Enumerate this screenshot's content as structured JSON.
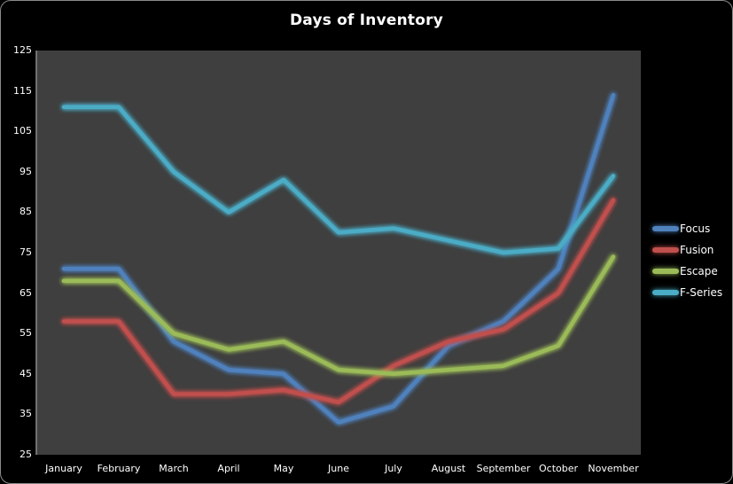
{
  "window": {
    "background": "#000000",
    "border_color": "#8a8a8a"
  },
  "chart_data": {
    "type": "line",
    "title": "Days of Inventory",
    "categories": [
      "January",
      "February",
      "March",
      "April",
      "May",
      "June",
      "July",
      "August",
      "September",
      "October",
      "November"
    ],
    "series": [
      {
        "name": "Focus",
        "color": "#4F81BD",
        "values": [
          71,
          71,
          53,
          46,
          45,
          33,
          37,
          52,
          58,
          71,
          114
        ]
      },
      {
        "name": "Fusion",
        "color": "#C0504D",
        "values": [
          58,
          58,
          40,
          40,
          41,
          38,
          47,
          53,
          56,
          65,
          88
        ]
      },
      {
        "name": "Escape",
        "color": "#9BBB59",
        "values": [
          68,
          68,
          55,
          51,
          53,
          46,
          45,
          46,
          47,
          52,
          74
        ]
      },
      {
        "name": "F-Series",
        "color": "#4BACC6",
        "values": [
          111,
          111,
          95,
          85,
          93,
          80,
          81,
          78,
          75,
          76,
          94
        ]
      }
    ],
    "xlabel": "",
    "ylabel": "",
    "ylim": [
      25,
      125
    ],
    "y_ticks": [
      25,
      35,
      45,
      55,
      65,
      75,
      85,
      95,
      105,
      115,
      125
    ],
    "grid": false,
    "legend_position": "right",
    "plot_background": "#3F3F3F",
    "axis_color": "#8C8C8C",
    "text_color": "#FFFFFF"
  }
}
